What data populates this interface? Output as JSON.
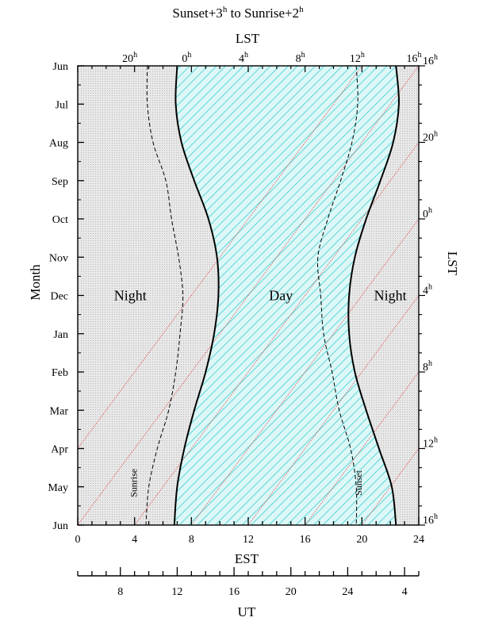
{
  "chart_data": {
    "type": "area",
    "title": "Sunset+3^h to Sunrise+2^h",
    "title_parts": {
      "pre": "Sunset+3",
      "sup1": "h",
      "mid": " to Sunrise+2",
      "sup2": "h"
    },
    "xlabel": "EST",
    "x_secondary_label": "UT",
    "x_top_label": "LST",
    "ylabel": "Month",
    "y_right_label": "LST",
    "xlim": [
      0,
      24
    ],
    "x_ticks": [
      0,
      4,
      8,
      12,
      16,
      20,
      24
    ],
    "ut_ticks": [
      "8",
      "12",
      "16",
      "20",
      "24",
      "4"
    ],
    "ut_tick_est": [
      3,
      7,
      11,
      15,
      19,
      23
    ],
    "months": [
      "Jun",
      "Jul",
      "Aug",
      "Sep",
      "Oct",
      "Nov",
      "Dec",
      "Jan",
      "Feb",
      "Mar",
      "Apr",
      "May",
      "Jun"
    ],
    "lst_top_ticks": [
      {
        "value": "20",
        "sup": "h",
        "est": 4
      },
      {
        "value": "0",
        "sup": "h",
        "est": 8
      },
      {
        "value": "4",
        "sup": "h",
        "est": 12
      },
      {
        "value": "8",
        "sup": "h",
        "est": 16
      },
      {
        "value": "12",
        "sup": "h",
        "est": 20
      },
      {
        "value": "16",
        "sup": "h",
        "est": 24
      }
    ],
    "lst_right_ticks": [
      {
        "value": "16",
        "sup": "h",
        "month": 0
      },
      {
        "value": "20",
        "sup": "h",
        "month": 2
      },
      {
        "value": "0",
        "sup": "h",
        "month": 4
      },
      {
        "value": "4",
        "sup": "h",
        "month": 6
      },
      {
        "value": "8",
        "sup": "h",
        "month": 8
      },
      {
        "value": "12",
        "sup": "h",
        "month": 10
      },
      {
        "value": "16",
        "sup": "h",
        "month": 12
      }
    ],
    "lst_lines_start_est": [
      -4,
      0,
      4,
      8,
      12,
      16,
      20,
      24,
      28,
      32,
      36
    ],
    "series": [
      {
        "key": "dark_start",
        "style": "solid",
        "month": [
          0,
          1,
          2,
          3,
          4,
          5,
          6,
          7,
          8,
          9,
          10,
          11,
          12
        ],
        "est": [
          22.4,
          22.6,
          22.2,
          21.3,
          20.3,
          19.5,
          19.1,
          19.1,
          19.5,
          20.3,
          21.2,
          22.1,
          22.4
        ]
      },
      {
        "key": "dark_end",
        "style": "solid",
        "month": [
          0,
          1,
          2,
          3,
          4,
          5,
          6,
          7,
          8,
          9,
          10,
          11,
          12
        ],
        "est": [
          7.0,
          6.9,
          7.3,
          8.2,
          9.2,
          9.8,
          9.9,
          9.6,
          9.0,
          8.2,
          7.5,
          7.0,
          6.8
        ]
      },
      {
        "key": "sunrise",
        "label": "Sunrise",
        "style": "dashed",
        "month": [
          0,
          1,
          2,
          3,
          4,
          5,
          6,
          7,
          8,
          9,
          10,
          11,
          12
        ],
        "est": [
          4.9,
          4.9,
          5.3,
          6.2,
          6.6,
          7.1,
          7.4,
          7.2,
          6.9,
          6.4,
          5.6,
          5.0,
          4.8
        ]
      },
      {
        "key": "sunset",
        "label": "Sunset",
        "style": "dashed",
        "month": [
          0,
          1,
          2,
          3,
          4,
          5,
          6,
          7,
          8,
          9,
          10,
          11,
          12
        ],
        "est": [
          19.6,
          19.7,
          19.3,
          18.5,
          17.6,
          16.9,
          17.1,
          17.3,
          17.9,
          18.4,
          19.2,
          19.6,
          19.6
        ]
      }
    ],
    "regions": [
      {
        "label": "Night",
        "est": 3.7,
        "month": 6
      },
      {
        "label": "Day",
        "est": 14.3,
        "month": 6
      },
      {
        "label": "Night",
        "est": 22.0,
        "month": 6
      }
    ],
    "colors": {
      "night_fill": "#e8e8e8",
      "day_fill": "#ddf7f7",
      "day_hatch": "#5cd6d6",
      "lst_line": "#e24040",
      "curve": "#000000"
    }
  }
}
